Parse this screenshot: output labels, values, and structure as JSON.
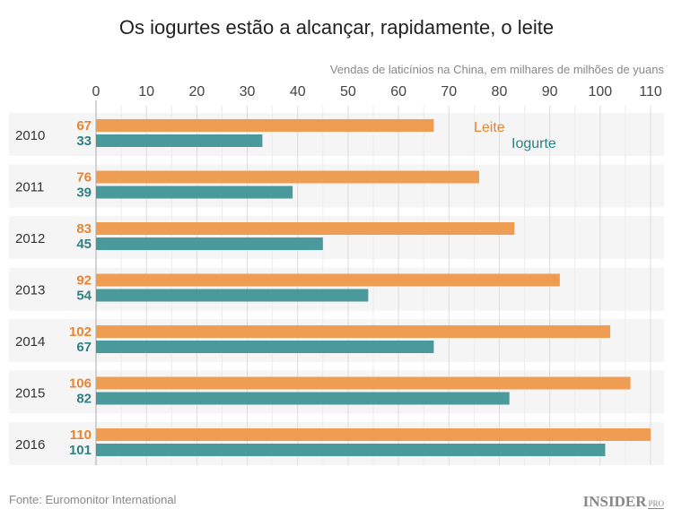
{
  "chart_data": {
    "type": "bar",
    "orientation": "horizontal",
    "title": "Os iogurtes estão a alcançar, rapidamente, o leite",
    "subtitle": "Vendas de laticínios na China, em milhares de milhões de yuans",
    "categories": [
      "2010",
      "2011",
      "2012",
      "2013",
      "2014",
      "2015",
      "2016"
    ],
    "series": [
      {
        "name": "Leite",
        "color": "#ef9d52",
        "label_color": "#e8842f",
        "values": [
          67,
          76,
          83,
          92,
          102,
          106,
          110
        ]
      },
      {
        "name": "Iogurte",
        "color": "#4a9a9c",
        "label_color": "#2f7f83",
        "values": [
          33,
          39,
          45,
          54,
          67,
          82,
          101
        ]
      }
    ],
    "xlim": [
      0,
      110
    ],
    "xticks": [
      0,
      10,
      20,
      30,
      40,
      50,
      60,
      70,
      80,
      90,
      100,
      110
    ],
    "grid": true,
    "legend_placement": "inline, next to first row",
    "source": "Fonte: Euromonitor International",
    "logo": "INSIDER PRO"
  }
}
